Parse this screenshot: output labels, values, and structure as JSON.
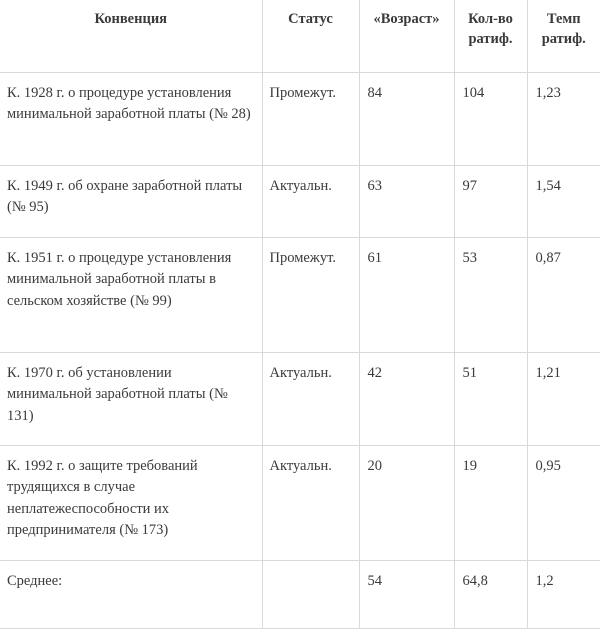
{
  "table": {
    "headers": {
      "convention": "Конвенция",
      "status": "Статус",
      "age": "«Возраст»",
      "count": "Кол-во ратиф.",
      "rate": "Темп ратиф."
    },
    "rows": [
      {
        "convention": "К. 1928 г. о процедуре установления минимальной заработной платы (№ 28)",
        "status": "Промежут.",
        "age": "84",
        "count": "104",
        "rate": "1,23"
      },
      {
        "convention": "К. 1949 г. об охране заработной платы (№ 95)",
        "status": "Актуальн.",
        "age": "63",
        "count": "97",
        "rate": "1,54"
      },
      {
        "convention": "К. 1951 г. о процедуре установления минимальной заработной платы в сельском хозяйстве (№ 99)",
        "status": "Промежут.",
        "age": "61",
        "count": "53",
        "rate": "0,87"
      },
      {
        "convention": "К. 1970 г. об установлении минимальной заработной платы (№ 131)",
        "status": "Актуальн.",
        "age": "42",
        "count": "51",
        "rate": "1,21"
      },
      {
        "convention": "К. 1992 г. о защите требований трудящихся в случае неплатежеспособности их предпринимателя (№ 173)",
        "status": "Актуальн.",
        "age": "20",
        "count": "19",
        "rate": "0,95"
      }
    ],
    "footer": {
      "label": "Среднее:",
      "status": "",
      "age": "54",
      "count": "64,8",
      "rate": "1,2"
    }
  }
}
